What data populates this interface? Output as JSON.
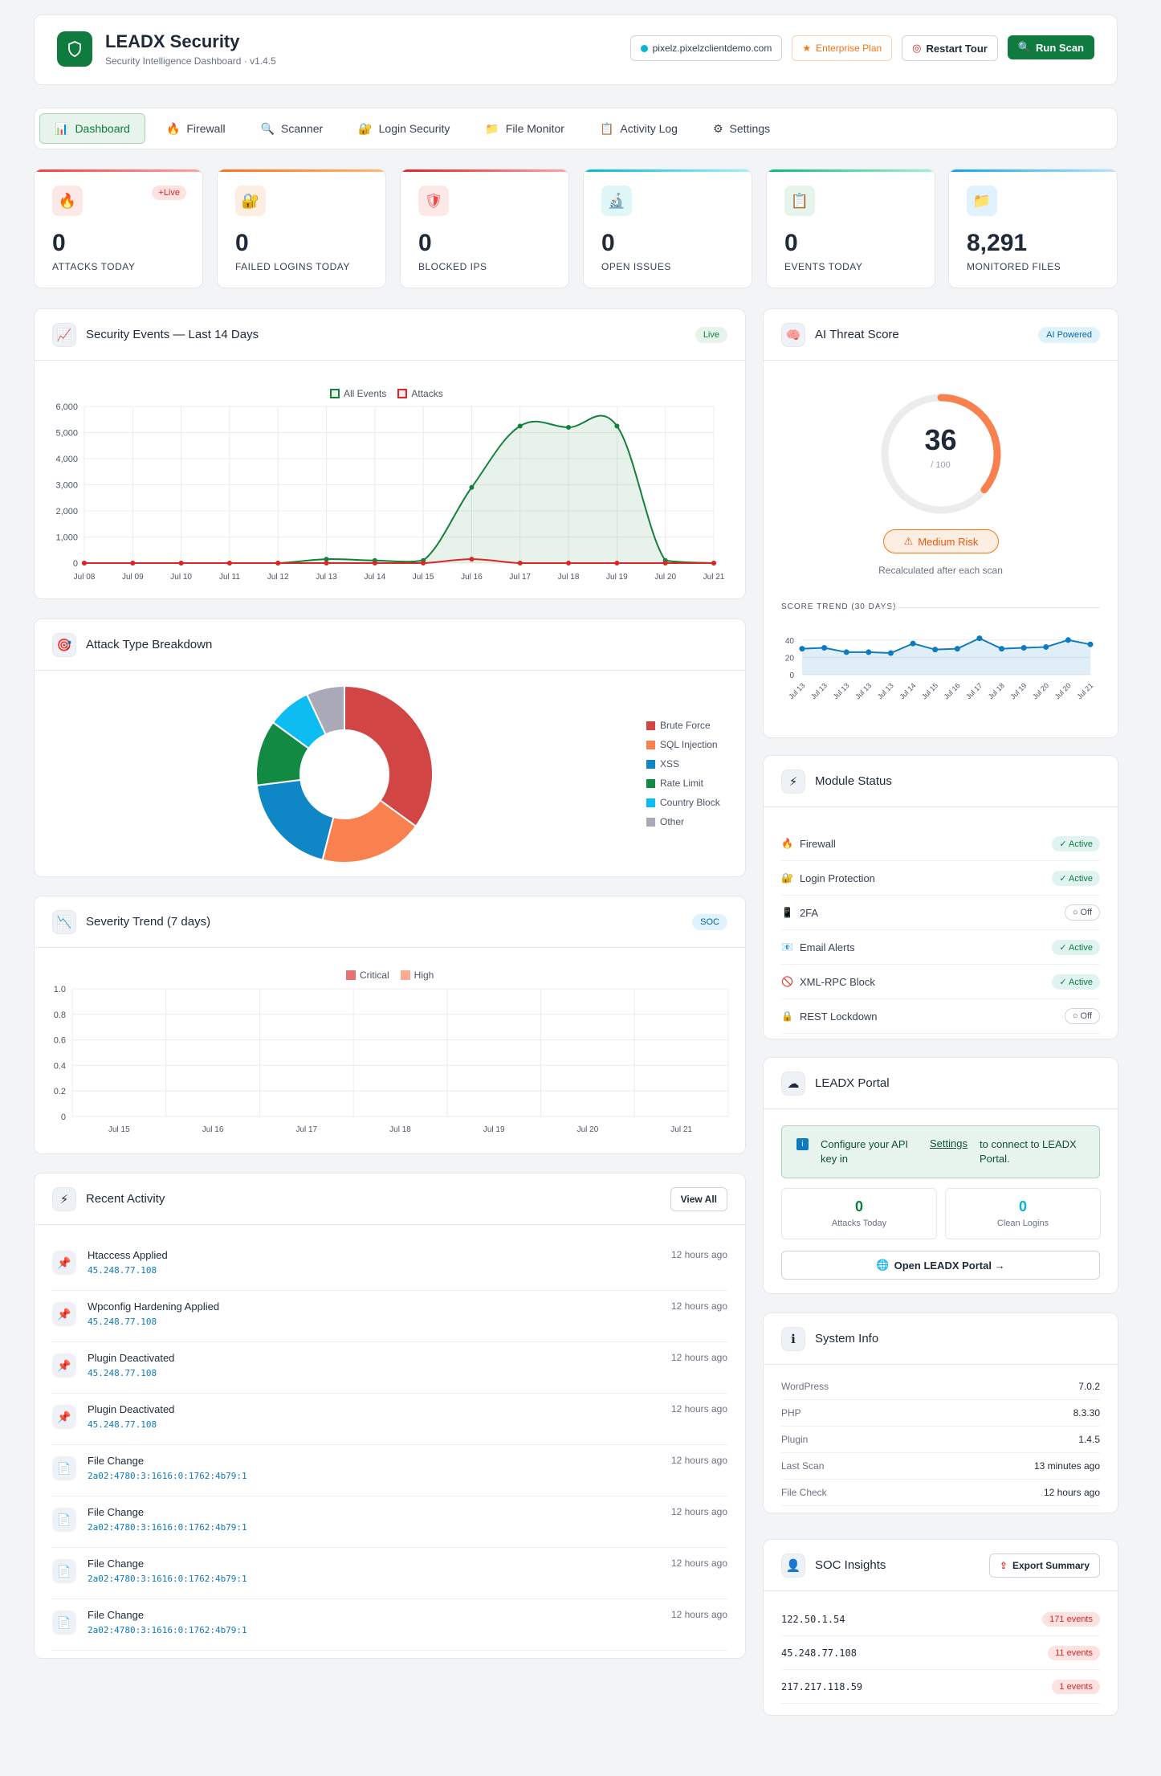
{
  "header": {
    "title": "LEADX Security",
    "subtitle": "Security Intelligence Dashboard · v1.4.5",
    "domain": "pixelz.pixelzclientdemo.com",
    "plan": "Enterprise Plan",
    "restart_tour": "Restart Tour",
    "run_scan": "Run Scan"
  },
  "nav": {
    "tabs": [
      {
        "label": "Dashboard",
        "icon": "📊"
      },
      {
        "label": "Firewall",
        "icon": "🔥"
      },
      {
        "label": "Scanner",
        "icon": "🔍"
      },
      {
        "label": "Login Security",
        "icon": "🔐"
      },
      {
        "label": "File Monitor",
        "icon": "📁"
      },
      {
        "label": "Activity Log",
        "icon": "📋"
      },
      {
        "label": "Settings",
        "icon": "⚙"
      }
    ]
  },
  "stats": [
    {
      "value": "0",
      "label": "ATTACKS TODAY",
      "icon": "🔥",
      "color": "#ef4444",
      "badge": "+Live"
    },
    {
      "value": "0",
      "label": "FAILED LOGINS TODAY",
      "icon": "🔐",
      "color": "#f97316"
    },
    {
      "value": "0",
      "label": "BLOCKED IPS",
      "icon": "🛡",
      "color": "#dc2626"
    },
    {
      "value": "0",
      "label": "OPEN ISSUES",
      "icon": "🔬",
      "color": "#06b6d4"
    },
    {
      "value": "0",
      "label": "EVENTS TODAY",
      "icon": "📋",
      "color": "#10b981"
    },
    {
      "value": "8,291",
      "label": "MONITORED FILES",
      "icon": "📁",
      "color": "#0ea5e9"
    }
  ],
  "events_card": {
    "title": "Security Events — Last 14 Days",
    "badge": "Live",
    "icon": "📈"
  },
  "attack_card": {
    "title": "Attack Type Breakdown",
    "icon": "🎯"
  },
  "severity_card": {
    "title": "Severity Trend (7 days)",
    "badge": "SOC",
    "icon": "📉"
  },
  "activity_card": {
    "title": "Recent Activity",
    "view_all": "View All",
    "icon": "⚡"
  },
  "activity": [
    {
      "title": "Htaccess Applied",
      "detail": "45.248.77.108",
      "time": "12 hours ago",
      "icon": "📌"
    },
    {
      "title": "Wpconfig Hardening Applied",
      "detail": "45.248.77.108",
      "time": "12 hours ago",
      "icon": "📌"
    },
    {
      "title": "Plugin Deactivated",
      "detail": "45.248.77.108",
      "time": "12 hours ago",
      "icon": "📌"
    },
    {
      "title": "Plugin Deactivated",
      "detail": "45.248.77.108",
      "time": "12 hours ago",
      "icon": "📌"
    },
    {
      "title": "File Change",
      "detail": "2a02:4780:3:1616:0:1762:4b79:1",
      "time": "12 hours ago",
      "icon": "📄"
    },
    {
      "title": "File Change",
      "detail": "2a02:4780:3:1616:0:1762:4b79:1",
      "time": "12 hours ago",
      "icon": "📄"
    },
    {
      "title": "File Change",
      "detail": "2a02:4780:3:1616:0:1762:4b79:1",
      "time": "12 hours ago",
      "icon": "📄"
    },
    {
      "title": "File Change",
      "detail": "2a02:4780:3:1616:0:1762:4b79:1",
      "time": "12 hours ago",
      "icon": "📄"
    }
  ],
  "threat_card": {
    "title": "AI Threat Score",
    "badge": "AI Powered",
    "icon": "🧠",
    "score": "36",
    "max": "/ 100",
    "score_value": 36,
    "risk": "Medium Risk",
    "note": "Recalculated after each scan",
    "trend_title": "SCORE TREND (30 DAYS)"
  },
  "module_card": {
    "title": "Module Status",
    "icon": "⚡"
  },
  "modules": [
    {
      "name": "Firewall",
      "status": "✓ Active",
      "on": true,
      "icon": "🔥"
    },
    {
      "name": "Login Protection",
      "status": "✓ Active",
      "on": true,
      "icon": "🔐"
    },
    {
      "name": "2FA",
      "status": "○ Off",
      "on": false,
      "icon": "📱"
    },
    {
      "name": "Email Alerts",
      "status": "✓ Active",
      "on": true,
      "icon": "📧"
    },
    {
      "name": "XML-RPC Block",
      "status": "✓ Active",
      "on": true,
      "icon": "🚫"
    },
    {
      "name": "REST Lockdown",
      "status": "○ Off",
      "on": false,
      "icon": "🔒"
    }
  ],
  "portal_card": {
    "title": "LEADX Portal",
    "icon": "☁",
    "info_a": "Configure your API key in",
    "info_link": "Settings",
    "info_b": "to connect to LEADX Portal.",
    "attacks_val": "0",
    "attacks_lbl": "Attacks Today",
    "clean_val": "0",
    "clean_lbl": "Clean Logins",
    "open": "Open LEADX Portal →"
  },
  "sys_card": {
    "title": "System Info",
    "icon": "ℹ"
  },
  "sys": [
    {
      "k": "WordPress",
      "v": "7.0.2"
    },
    {
      "k": "PHP",
      "v": "8.3.30"
    },
    {
      "k": "Plugin",
      "v": "1.4.5"
    },
    {
      "k": "Last Scan",
      "v": "13 minutes ago"
    },
    {
      "k": "File Check",
      "v": "12 hours ago"
    }
  ],
  "soc_card": {
    "title": "SOC Insights",
    "export": "Export Summary",
    "icon": "👤"
  },
  "soc": [
    {
      "ip": "122.50.1.54",
      "events": "171 events"
    },
    {
      "ip": "45.248.77.108",
      "events": "11 events"
    },
    {
      "ip": "217.217.118.59",
      "events": "1 events"
    }
  ],
  "chart_data": [
    {
      "type": "line",
      "name": "security-events",
      "x": [
        "Jul 08",
        "Jul 09",
        "Jul 10",
        "Jul 11",
        "Jul 12",
        "Jul 13",
        "Jul 14",
        "Jul 15",
        "Jul 16",
        "Jul 17",
        "Jul 18",
        "Jul 19",
        "Jul 20",
        "Jul 21"
      ],
      "series": [
        {
          "name": "All Events",
          "values": [
            0,
            0,
            0,
            0,
            0,
            150,
            100,
            100,
            2900,
            5250,
            5200,
            5250,
            100,
            0
          ],
          "color": "#15803d"
        },
        {
          "name": "Attacks",
          "values": [
            0,
            0,
            0,
            0,
            0,
            0,
            0,
            0,
            150,
            0,
            0,
            0,
            0,
            0
          ],
          "color": "#dc2626"
        }
      ],
      "yticks": [
        "0",
        "1,000",
        "2,000",
        "3,000",
        "4,000",
        "5,000",
        "6,000"
      ],
      "ylim": [
        0,
        6000
      ]
    },
    {
      "type": "pie",
      "name": "attack-types",
      "labels": [
        "Brute Force",
        "SQL Injection",
        "XSS",
        "Rate Limit",
        "Country Block",
        "Other"
      ],
      "values": [
        35,
        19,
        19,
        12,
        8,
        7
      ],
      "colors": [
        "#d14545",
        "#f9814f",
        "#0f86c5",
        "#128a44",
        "#0dbcf0",
        "#a9a9b8"
      ]
    },
    {
      "type": "bar",
      "name": "severity-trend",
      "x": [
        "Jul 15",
        "Jul 16",
        "Jul 17",
        "Jul 18",
        "Jul 19",
        "Jul 20",
        "Jul 21"
      ],
      "series": [
        {
          "name": "Critical",
          "values": [
            0,
            0,
            0,
            0,
            0,
            0,
            0
          ],
          "color": "#e57373"
        },
        {
          "name": "High",
          "values": [
            0,
            0,
            0,
            0,
            0,
            0,
            0
          ],
          "color": "#ffab91"
        }
      ],
      "yticks": [
        "0",
        "0.2",
        "0.4",
        "0.6",
        "0.8",
        "1.0"
      ],
      "ylim": [
        0,
        1
      ]
    },
    {
      "type": "area",
      "name": "score-trend",
      "x": [
        "Jul 13",
        "Jul 13",
        "Jul 13",
        "Jul 13",
        "Jul 13",
        "Jul 14",
        "Jul 15",
        "Jul 16",
        "Jul 17",
        "Jul 18",
        "Jul 19",
        "Jul 20",
        "Jul 20",
        "Jul 21"
      ],
      "values": [
        30,
        31,
        26,
        26,
        25,
        36,
        29,
        30,
        42,
        30,
        31,
        32,
        40,
        35
      ],
      "yticks": [
        "0",
        "20",
        "40"
      ],
      "ylim": [
        0,
        50
      ]
    }
  ]
}
